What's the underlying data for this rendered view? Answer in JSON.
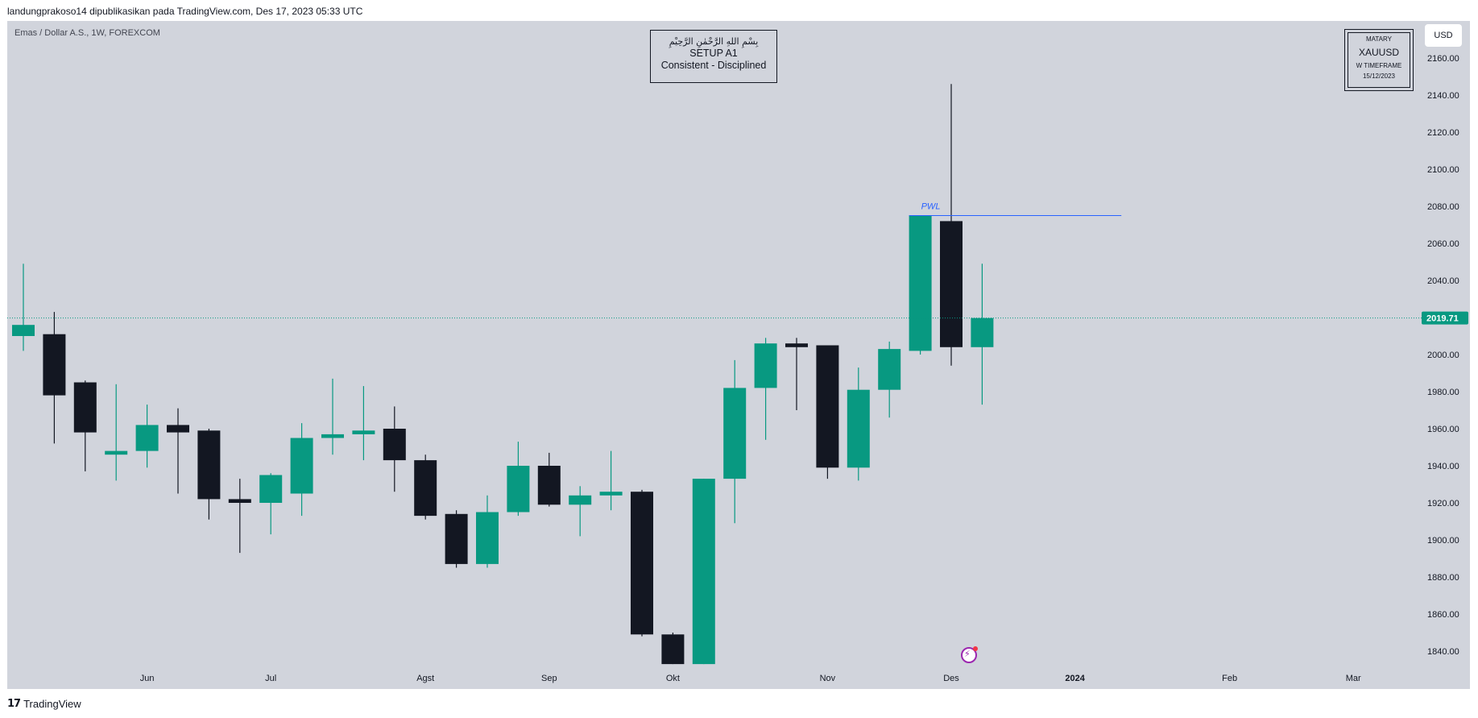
{
  "header": {
    "caption": "landungprakoso14 dipublikasikan pada TradingView.com, Des 17, 2023 05:33 UTC"
  },
  "symbol": {
    "label": "Emas / Dollar A.S., 1W, FOREXCOM"
  },
  "setup_box": {
    "arabic": "بِسْمِ اللهِ الرَّحْمٰنِ الرَّحِيْمِ",
    "line1": "SETUP A1",
    "line2": "Consistent - Disciplined"
  },
  "stamp": {
    "line1": "MATARY",
    "line2": "XAUUSD",
    "line3": "W TIMEFRAME",
    "line4": "15/12/2023"
  },
  "currency_button": "USD",
  "footer": {
    "brand": "TradingView"
  },
  "colors": {
    "background": "#d1d4dc",
    "bull": "#089981",
    "bear": "#131722",
    "pwl_line": "#2962ff",
    "current_price": "#089981"
  },
  "icons": [
    "tradingview-logo-icon",
    "bolt-icon"
  ],
  "chart_data": {
    "type": "candlestick",
    "title": "",
    "ylim": [
      1830,
      2170
    ],
    "y_ticks": [
      1840,
      1860,
      1880,
      1900,
      1920,
      1940,
      1960,
      1980,
      2000,
      2020,
      2040,
      2060,
      2080,
      2100,
      2120,
      2140,
      2160
    ],
    "y_tick_labels": [
      "1840.00",
      "1860.00",
      "1880.00",
      "1900.00",
      "1920.00",
      "1940.00",
      "1960.00",
      "1980.00",
      "2000.00",
      "2020.00",
      "2040.00",
      "2060.00",
      "2080.00",
      "2100.00",
      "2120.00",
      "2140.00",
      "2160.00"
    ],
    "x_tick_labels": [
      {
        "label": "Jun",
        "index": 4,
        "bold": false
      },
      {
        "label": "Jul",
        "index": 8,
        "bold": false
      },
      {
        "label": "Agst",
        "index": 13,
        "bold": false
      },
      {
        "label": "Sep",
        "index": 17,
        "bold": false
      },
      {
        "label": "Okt",
        "index": 21,
        "bold": false
      },
      {
        "label": "Nov",
        "index": 26,
        "bold": false
      },
      {
        "label": "Des",
        "index": 30,
        "bold": false
      },
      {
        "label": "2024",
        "index": 34,
        "bold": true
      },
      {
        "label": "Feb",
        "index": 39,
        "bold": false
      },
      {
        "label": "Mar",
        "index": 43,
        "bold": false
      }
    ],
    "total_slots": 48,
    "candles": [
      {
        "o": 2010,
        "h": 2049,
        "l": 2002,
        "c": 2016
      },
      {
        "o": 2011,
        "h": 2023,
        "l": 1952,
        "c": 1978
      },
      {
        "o": 1985,
        "h": 1986,
        "l": 1937,
        "c": 1958
      },
      {
        "o": 1946,
        "h": 1984,
        "l": 1932,
        "c": 1948
      },
      {
        "o": 1948,
        "h": 1973,
        "l": 1939,
        "c": 1962
      },
      {
        "o": 1962,
        "h": 1971,
        "l": 1925,
        "c": 1958
      },
      {
        "o": 1959,
        "h": 1960,
        "l": 1911,
        "c": 1922
      },
      {
        "o": 1922,
        "h": 1933,
        "l": 1893,
        "c": 1920
      },
      {
        "o": 1920,
        "h": 1936,
        "l": 1903,
        "c": 1935
      },
      {
        "o": 1925,
        "h": 1963,
        "l": 1913,
        "c": 1955
      },
      {
        "o": 1955,
        "h": 1987,
        "l": 1946,
        "c": 1957
      },
      {
        "o": 1957,
        "h": 1983,
        "l": 1943,
        "c": 1959
      },
      {
        "o": 1960,
        "h": 1972,
        "l": 1926,
        "c": 1943
      },
      {
        "o": 1943,
        "h": 1946,
        "l": 1911,
        "c": 1913
      },
      {
        "o": 1914,
        "h": 1916,
        "l": 1885,
        "c": 1887
      },
      {
        "o": 1887,
        "h": 1924,
        "l": 1885,
        "c": 1915
      },
      {
        "o": 1915,
        "h": 1953,
        "l": 1913,
        "c": 1940
      },
      {
        "o": 1940,
        "h": 1947,
        "l": 1918,
        "c": 1919
      },
      {
        "o": 1919,
        "h": 1929,
        "l": 1902,
        "c": 1924
      },
      {
        "o": 1924,
        "h": 1948,
        "l": 1916,
        "c": 1926
      },
      {
        "o": 1926,
        "h": 1927,
        "l": 1848,
        "c": 1849
      },
      {
        "o": 1849,
        "h": 1850,
        "l": 1833,
        "c": 1833
      },
      {
        "o": 1833,
        "h": 1933,
        "l": 1833,
        "c": 1933
      },
      {
        "o": 1933,
        "h": 1997,
        "l": 1909,
        "c": 1982
      },
      {
        "o": 1982,
        "h": 2009,
        "l": 1954,
        "c": 2006
      },
      {
        "o": 2006,
        "h": 2009,
        "l": 1970,
        "c": 2004
      },
      {
        "o": 2005,
        "h": 2005,
        "l": 1933,
        "c": 1939
      },
      {
        "o": 1939,
        "h": 1993,
        "l": 1932,
        "c": 1981
      },
      {
        "o": 1981,
        "h": 2007,
        "l": 1966,
        "c": 2003
      },
      {
        "o": 2002,
        "h": 2075,
        "l": 2000,
        "c": 2075
      },
      {
        "o": 2072,
        "h": 2146,
        "l": 1994,
        "c": 2004
      },
      {
        "o": 2004,
        "h": 2049,
        "l": 1973,
        "c": 2019.71
      }
    ],
    "annotations": [
      {
        "type": "hline",
        "label": "PWL",
        "price": 2075,
        "from_index": 29,
        "to_index": 35.5
      }
    ],
    "current_price": 2019.71,
    "current_price_label": "2019.71"
  }
}
